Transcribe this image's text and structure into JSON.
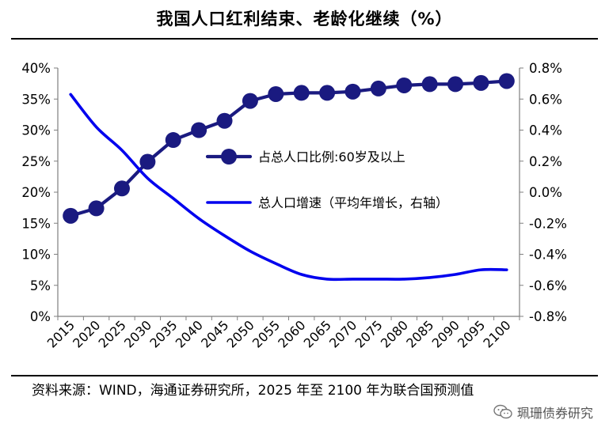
{
  "header": {
    "title": "我国人口红利结束、老龄化继续（%）"
  },
  "footer": {
    "source": "资料来源：WIND，海通证券研究所，2025 年至 2100 年为联合国预测值",
    "watermark": "珮珊债券研究"
  },
  "chart_data": {
    "type": "line",
    "categories": [
      "2015",
      "2020",
      "2025",
      "2030",
      "2035",
      "2040",
      "2045",
      "2050",
      "2055",
      "2060",
      "2065",
      "2070",
      "2075",
      "2080",
      "2085",
      "2090",
      "2095",
      "2100"
    ],
    "series": [
      {
        "name": "占总人口比例:60岁及以上",
        "axis": "left",
        "color": "#1a1a80",
        "marker": "circle",
        "values": [
          16.2,
          17.4,
          20.6,
          24.9,
          28.4,
          30.0,
          31.5,
          34.7,
          35.8,
          36.0,
          36.0,
          36.2,
          36.7,
          37.2,
          37.4,
          37.4,
          37.6,
          37.9
        ]
      },
      {
        "name": "总人口增速（平均年增长，右轴）",
        "axis": "right",
        "color": "#0000ee",
        "marker": "none",
        "values": [
          0.63,
          0.42,
          0.27,
          0.09,
          -0.04,
          -0.17,
          -0.28,
          -0.38,
          -0.46,
          -0.53,
          -0.56,
          -0.56,
          -0.56,
          -0.56,
          -0.55,
          -0.53,
          -0.5,
          -0.5
        ]
      }
    ],
    "left_axis": {
      "min": 0,
      "max": 40,
      "step": 5,
      "suffix": "%",
      "ticks": [
        "0%",
        "5%",
        "10%",
        "15%",
        "20%",
        "25%",
        "30%",
        "35%",
        "40%"
      ]
    },
    "right_axis": {
      "min": -0.8,
      "max": 0.8,
      "step": 0.2,
      "ticks": [
        "-0.8%",
        "-0.6%",
        "-0.4%",
        "-0.2%",
        "0.0%",
        "0.2%",
        "0.4%",
        "0.6%",
        "0.8%"
      ]
    },
    "legend": {
      "placement": "center-right"
    },
    "grid": false
  }
}
